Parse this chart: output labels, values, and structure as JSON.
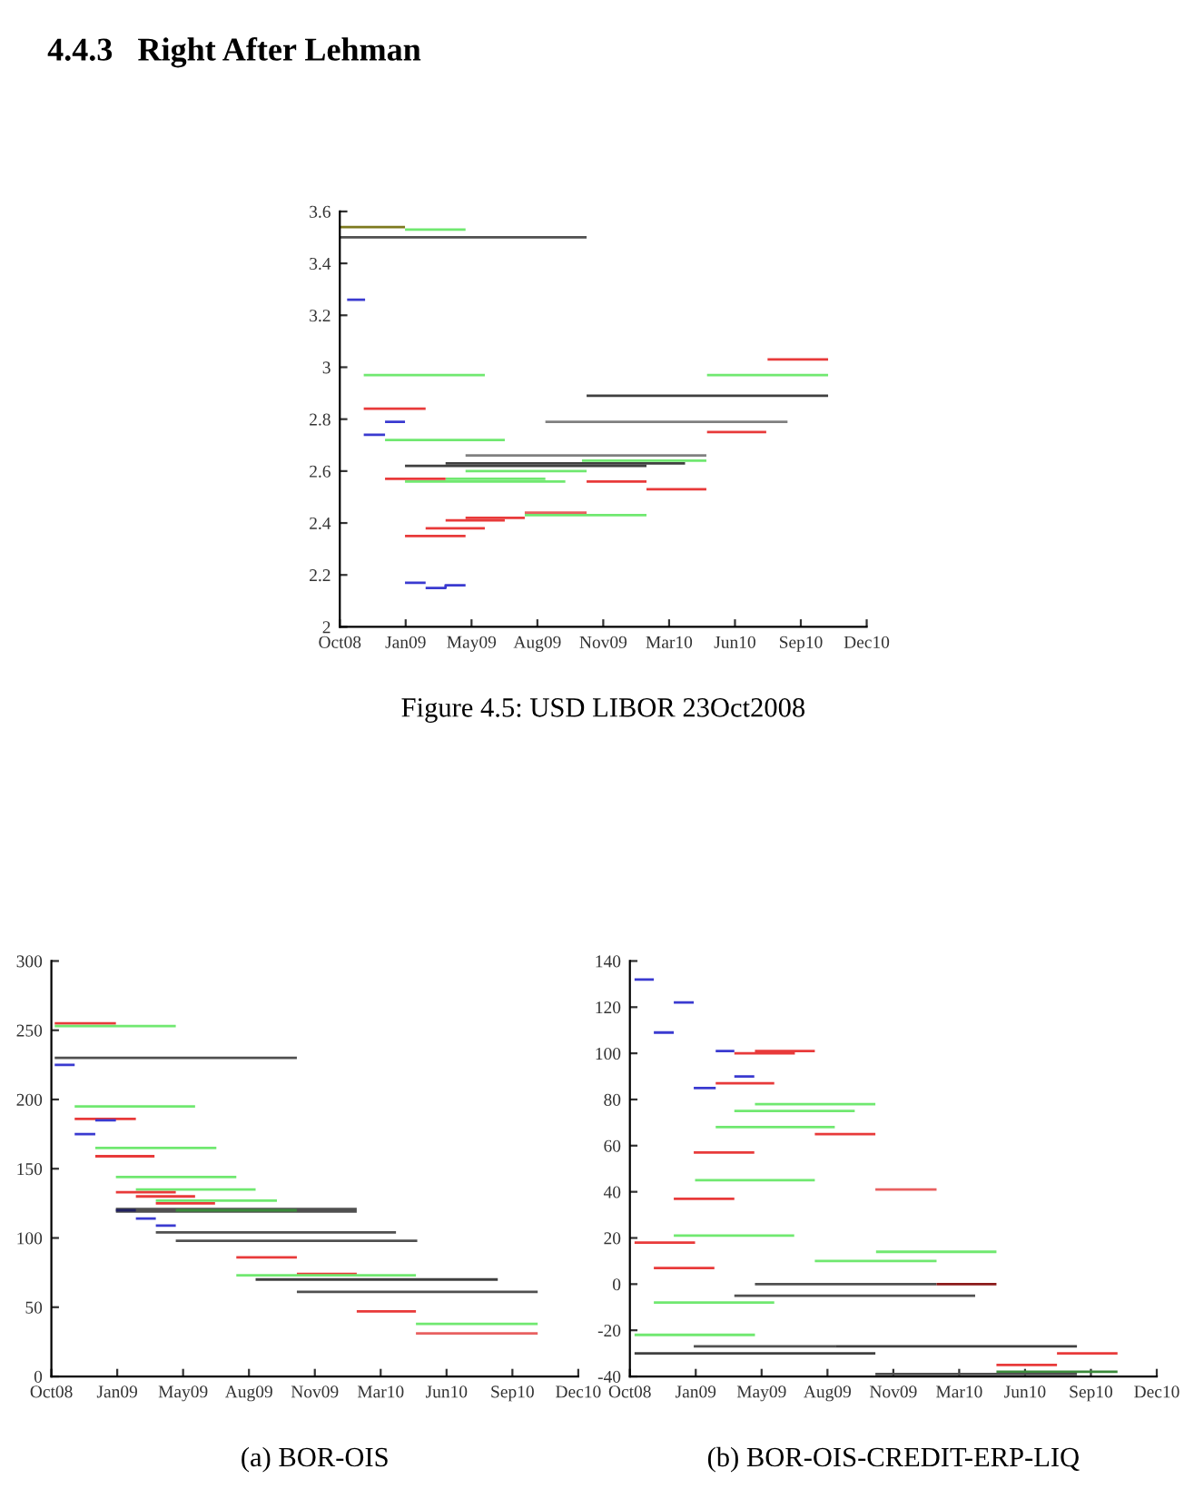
{
  "chart_data": [
    {
      "type": "line",
      "title": "Figure 4.5: USD LIBOR 23Oct2008",
      "annotations": [
        "4.4.3   Right After Lehman"
      ],
      "xlim": [
        "2008-10-23",
        "2010-12-24"
      ],
      "xticks": [
        {
          "value": "2008-10-23",
          "label": "Oct08"
        },
        {
          "value": "2009-01-30",
          "label": "Jan09"
        },
        {
          "value": "2009-05-09",
          "label": "May09"
        },
        {
          "value": "2009-08-16",
          "label": "Aug09"
        },
        {
          "value": "2009-11-23",
          "label": "Nov09"
        },
        {
          "value": "2010-03-02",
          "label": "Mar10"
        },
        {
          "value": "2010-06-09",
          "label": "Jun10"
        },
        {
          "value": "2010-09-16",
          "label": "Sep10"
        },
        {
          "value": "2010-12-24",
          "label": "Dec10"
        }
      ],
      "ylim": [
        2,
        3.6
      ],
      "yticks": [
        2,
        2.2,
        2.4,
        2.6,
        2.8,
        3,
        3.2,
        3.4,
        3.6
      ],
      "grid": false,
      "legend": false,
      "series": [
        {
          "x": [
            "2008-10-23",
            "2009-01-29"
          ],
          "values": [
            3.54,
            3.54
          ],
          "color": "#7d7a1e"
        },
        {
          "x": [
            "2009-01-29",
            "2009-04-30"
          ],
          "values": [
            3.53,
            3.53
          ],
          "color": "#70e870"
        },
        {
          "x": [
            "2008-10-23",
            "2009-10-29"
          ],
          "values": [
            3.5,
            3.5
          ],
          "color": "#505050"
        },
        {
          "x": [
            "2008-11-03",
            "2008-11-30"
          ],
          "values": [
            3.26,
            3.26
          ],
          "color": "#3a3ad0"
        },
        {
          "x": [
            "2008-11-28",
            "2009-05-29"
          ],
          "values": [
            2.97,
            2.97
          ],
          "color": "#70e870"
        },
        {
          "x": [
            "2008-11-28",
            "2009-03-01"
          ],
          "values": [
            2.84,
            2.84
          ],
          "color": "#e83a3a"
        },
        {
          "x": [
            "2008-12-30",
            "2009-01-29"
          ],
          "values": [
            2.79,
            2.79
          ],
          "color": "#3a3ad0"
        },
        {
          "x": [
            "2008-11-28",
            "2008-12-30"
          ],
          "values": [
            2.74,
            2.74
          ],
          "color": "#3a3ad0"
        },
        {
          "x": [
            "2008-12-30",
            "2009-06-28"
          ],
          "values": [
            2.72,
            2.72
          ],
          "color": "#70e870"
        },
        {
          "x": [
            "2009-04-30",
            "2010-04-27"
          ],
          "values": [
            2.66,
            2.66
          ],
          "color": "#808080"
        },
        {
          "x": [
            "2009-10-22",
            "2010-04-27"
          ],
          "values": [
            2.64,
            2.64
          ],
          "color": "#70e870"
        },
        {
          "x": [
            "2009-03-31",
            "2010-03-26"
          ],
          "values": [
            2.63,
            2.63
          ],
          "color": "#404040"
        },
        {
          "x": [
            "2009-01-29",
            "2010-01-27"
          ],
          "values": [
            2.62,
            2.62
          ],
          "color": "#404040"
        },
        {
          "x": [
            "2009-04-30",
            "2009-10-29"
          ],
          "values": [
            2.6,
            2.6
          ],
          "color": "#70e870"
        },
        {
          "x": [
            "2009-03-31",
            "2009-08-28"
          ],
          "values": [
            2.57,
            2.57
          ],
          "color": "#70e870"
        },
        {
          "x": [
            "2008-12-30",
            "2009-03-31"
          ],
          "values": [
            2.57,
            2.57
          ],
          "color": "#e83a3a"
        },
        {
          "x": [
            "2009-01-29",
            "2009-09-27"
          ],
          "values": [
            2.56,
            2.56
          ],
          "color": "#70e870"
        },
        {
          "x": [
            "2009-10-29",
            "2010-01-27"
          ],
          "values": [
            2.56,
            2.56
          ],
          "color": "#e83a3a"
        },
        {
          "x": [
            "2010-01-27",
            "2010-04-27"
          ],
          "values": [
            2.53,
            2.53
          ],
          "color": "#e83a3a"
        },
        {
          "x": [
            "2009-07-28",
            "2009-10-29"
          ],
          "values": [
            2.44,
            2.44
          ],
          "color": "#e86060"
        },
        {
          "x": [
            "2009-07-28",
            "2010-01-27"
          ],
          "values": [
            2.43,
            2.43
          ],
          "color": "#70e870"
        },
        {
          "x": [
            "2009-04-30",
            "2009-07-28"
          ],
          "values": [
            2.42,
            2.42
          ],
          "color": "#e83a3a"
        },
        {
          "x": [
            "2009-03-31",
            "2009-06-28"
          ],
          "values": [
            2.41,
            2.41
          ],
          "color": "#e83a3a"
        },
        {
          "x": [
            "2009-03-01",
            "2009-05-29"
          ],
          "values": [
            2.38,
            2.38
          ],
          "color": "#e83a3a"
        },
        {
          "x": [
            "2009-01-29",
            "2009-04-30"
          ],
          "values": [
            2.35,
            2.35
          ],
          "color": "#e83a3a"
        },
        {
          "x": [
            "2009-01-29",
            "2009-03-01"
          ],
          "values": [
            2.17,
            2.17
          ],
          "color": "#3a3ad0"
        },
        {
          "x": [
            "2009-03-01",
            "2009-03-31",
            "2009-03-31",
            "2009-04-30"
          ],
          "values": [
            2.15,
            2.15,
            2.16,
            2.16
          ],
          "color": "#3a3ad0"
        },
        {
          "x": [
            "2010-07-28",
            "2010-10-27"
          ],
          "values": [
            3.03,
            3.03
          ],
          "color": "#e83a3a"
        },
        {
          "x": [
            "2010-04-28",
            "2010-10-27"
          ],
          "values": [
            2.97,
            2.97
          ],
          "color": "#70e870"
        },
        {
          "x": [
            "2009-10-29",
            "2010-10-27"
          ],
          "values": [
            2.89,
            2.89
          ],
          "color": "#404040"
        },
        {
          "x": [
            "2009-08-28",
            "2010-08-27"
          ],
          "values": [
            2.79,
            2.79
          ],
          "color": "#808080"
        },
        {
          "x": [
            "2010-04-28",
            "2010-07-26"
          ],
          "values": [
            2.75,
            2.75
          ],
          "color": "#e83a3a"
        }
      ]
    },
    {
      "type": "line",
      "title": "(a) BOR-OIS",
      "xlim": [
        "2008-10-23",
        "2010-12-24"
      ],
      "xticks": [
        {
          "value": "2008-10-23",
          "label": "Oct08"
        },
        {
          "value": "2009-01-30",
          "label": "Jan09"
        },
        {
          "value": "2009-05-09",
          "label": "May09"
        },
        {
          "value": "2009-08-16",
          "label": "Aug09"
        },
        {
          "value": "2009-11-23",
          "label": "Nov09"
        },
        {
          "value": "2010-03-02",
          "label": "Mar10"
        },
        {
          "value": "2010-06-09",
          "label": "Jun10"
        },
        {
          "value": "2010-09-16",
          "label": "Sep10"
        },
        {
          "value": "2010-12-24",
          "label": "Dec10"
        }
      ],
      "ylim": [
        0,
        300
      ],
      "yticks": [
        0,
        50,
        100,
        150,
        200,
        250,
        300
      ],
      "grid": false,
      "legend": false,
      "series": [
        {
          "x": [
            "2008-10-28",
            "2009-01-28"
          ],
          "values": [
            255,
            255
          ],
          "color": "#e83a3a"
        },
        {
          "x": [
            "2008-10-28",
            "2009-04-28"
          ],
          "values": [
            253,
            253
          ],
          "color": "#70e870"
        },
        {
          "x": [
            "2008-10-28",
            "2009-10-27"
          ],
          "values": [
            230,
            230
          ],
          "color": "#505050"
        },
        {
          "x": [
            "2008-10-28",
            "2008-11-27"
          ],
          "values": [
            225,
            225
          ],
          "color": "#3a3ad0"
        },
        {
          "x": [
            "2008-11-27",
            "2009-05-27"
          ],
          "values": [
            195,
            195
          ],
          "color": "#70e870"
        },
        {
          "x": [
            "2008-11-27",
            "2009-02-27"
          ],
          "values": [
            186,
            186
          ],
          "color": "#e83a3a"
        },
        {
          "x": [
            "2008-12-28",
            "2009-01-28"
          ],
          "values": [
            185,
            185
          ],
          "color": "#3a3ad0"
        },
        {
          "x": [
            "2008-11-27",
            "2008-12-28"
          ],
          "values": [
            175,
            175
          ],
          "color": "#3a3ad0"
        },
        {
          "x": [
            "2008-12-28",
            "2009-06-28"
          ],
          "values": [
            165,
            165
          ],
          "color": "#70e870"
        },
        {
          "x": [
            "2008-12-28",
            "2009-03-27"
          ],
          "values": [
            159,
            159
          ],
          "color": "#e83a3a"
        },
        {
          "x": [
            "2009-01-28",
            "2009-07-28"
          ],
          "values": [
            144,
            144
          ],
          "color": "#70e870"
        },
        {
          "x": [
            "2009-02-27",
            "2009-08-26"
          ],
          "values": [
            135,
            135
          ],
          "color": "#70e870"
        },
        {
          "x": [
            "2009-01-28",
            "2009-04-28"
          ],
          "values": [
            133,
            133
          ],
          "color": "#e83a3a"
        },
        {
          "x": [
            "2009-02-27",
            "2009-05-27"
          ],
          "values": [
            130,
            130
          ],
          "color": "#e83a3a"
        },
        {
          "x": [
            "2009-03-29",
            "2009-09-27"
          ],
          "values": [
            127,
            127
          ],
          "color": "#70e870"
        },
        {
          "x": [
            "2009-03-29",
            "2009-06-26"
          ],
          "values": [
            125,
            125
          ],
          "color": "#e83a3a"
        },
        {
          "x": [
            "2009-01-28",
            "2010-01-25"
          ],
          "values": [
            120,
            120
          ],
          "color": "#505050"
        },
        {
          "x": [
            "2009-04-28",
            "2009-10-27"
          ],
          "values": [
            120,
            120
          ],
          "color": "#3a8a3a"
        },
        {
          "x": [
            "2009-01-28",
            "2009-02-27"
          ],
          "values": [
            120,
            120
          ],
          "color": "#202060"
        },
        {
          "x": [
            "2009-02-27",
            "2009-03-29"
          ],
          "values": [
            114,
            114
          ],
          "color": "#3a3ad0"
        },
        {
          "x": [
            "2009-03-29",
            "2009-04-28"
          ],
          "values": [
            109,
            109
          ],
          "color": "#3a3ad0"
        },
        {
          "x": [
            "2009-03-29",
            "2010-03-25"
          ],
          "values": [
            104,
            104
          ],
          "color": "#505050"
        },
        {
          "x": [
            "2009-04-28",
            "2010-04-26"
          ],
          "values": [
            98,
            98
          ],
          "color": "#505050"
        },
        {
          "x": [
            "2009-07-28",
            "2009-10-27"
          ],
          "values": [
            86,
            86
          ],
          "color": "#e83a3a"
        },
        {
          "x": [
            "2009-10-27",
            "2010-01-25"
          ],
          "values": [
            74,
            74
          ],
          "color": "#e83a3a"
        },
        {
          "x": [
            "2009-07-28",
            "2010-04-24"
          ],
          "values": [
            73,
            73
          ],
          "color": "#70e870"
        },
        {
          "x": [
            "2009-08-26",
            "2010-08-25"
          ],
          "values": [
            70,
            70
          ],
          "color": "#404040"
        },
        {
          "x": [
            "2009-10-27",
            "2010-10-24"
          ],
          "values": [
            61,
            61
          ],
          "color": "#505050"
        },
        {
          "x": [
            "2010-01-25",
            "2010-04-24"
          ],
          "values": [
            47,
            47
          ],
          "color": "#e83a3a"
        },
        {
          "x": [
            "2010-04-24",
            "2010-10-24"
          ],
          "values": [
            38,
            38
          ],
          "color": "#70e870"
        },
        {
          "x": [
            "2010-04-24",
            "2010-10-24"
          ],
          "values": [
            31,
            31
          ],
          "color": "#e86060"
        }
      ]
    },
    {
      "type": "line",
      "title": "(b) BOR-OIS-CREDIT-ERP-LIQ",
      "xlim": [
        "2008-10-23",
        "2010-12-24"
      ],
      "xticks": [
        {
          "value": "2008-10-23",
          "label": "Oct08"
        },
        {
          "value": "2009-01-30",
          "label": "Jan09"
        },
        {
          "value": "2009-05-09",
          "label": "May09"
        },
        {
          "value": "2009-08-16",
          "label": "Aug09"
        },
        {
          "value": "2009-11-23",
          "label": "Nov09"
        },
        {
          "value": "2010-03-02",
          "label": "Mar10"
        },
        {
          "value": "2010-06-09",
          "label": "Jun10"
        },
        {
          "value": "2010-09-16",
          "label": "Sep10"
        },
        {
          "value": "2010-12-24",
          "label": "Dec10"
        }
      ],
      "ylim": [
        -40,
        140
      ],
      "yticks": [
        -40,
        -20,
        0,
        20,
        40,
        60,
        80,
        100,
        120,
        140
      ],
      "grid": false,
      "legend": false,
      "series": [
        {
          "x": [
            "2008-10-30",
            "2008-11-28"
          ],
          "values": [
            132,
            132
          ],
          "color": "#3a3ad0"
        },
        {
          "x": [
            "2008-12-28",
            "2009-01-27"
          ],
          "values": [
            122,
            122
          ],
          "color": "#3a3ad0"
        },
        {
          "x": [
            "2008-11-28",
            "2008-12-28"
          ],
          "values": [
            109,
            109
          ],
          "color": "#3a3ad0"
        },
        {
          "x": [
            "2009-03-01",
            "2009-03-29"
          ],
          "values": [
            101,
            101
          ],
          "color": "#3a3ad0"
        },
        {
          "x": [
            "2009-03-29",
            "2009-06-28"
          ],
          "values": [
            100,
            100
          ],
          "color": "#e83a3a"
        },
        {
          "x": [
            "2009-04-29",
            "2009-07-28"
          ],
          "values": [
            101,
            101
          ],
          "color": "#e83a3a"
        },
        {
          "x": [
            "2009-03-29",
            "2009-04-28"
          ],
          "values": [
            90,
            90
          ],
          "color": "#3a3ad0"
        },
        {
          "x": [
            "2009-01-27",
            "2009-03-01"
          ],
          "values": [
            85,
            85
          ],
          "color": "#3a3ad0"
        },
        {
          "x": [
            "2009-03-01",
            "2009-05-28"
          ],
          "values": [
            87,
            87
          ],
          "color": "#e83a3a"
        },
        {
          "x": [
            "2009-04-29",
            "2009-10-27"
          ],
          "values": [
            78,
            78
          ],
          "color": "#70e870"
        },
        {
          "x": [
            "2009-03-29",
            "2009-09-26"
          ],
          "values": [
            75,
            75
          ],
          "color": "#70e870"
        },
        {
          "x": [
            "2009-03-01",
            "2009-08-27"
          ],
          "values": [
            68,
            68
          ],
          "color": "#70e870"
        },
        {
          "x": [
            "2009-07-28",
            "2009-10-27"
          ],
          "values": [
            65,
            65
          ],
          "color": "#e83a3a"
        },
        {
          "x": [
            "2009-01-27",
            "2009-04-28"
          ],
          "values": [
            57,
            57
          ],
          "color": "#e83a3a"
        },
        {
          "x": [
            "2009-01-29",
            "2009-07-28"
          ],
          "values": [
            45,
            45
          ],
          "color": "#70e870"
        },
        {
          "x": [
            "2009-10-27",
            "2010-01-27"
          ],
          "values": [
            41,
            41
          ],
          "color": "#e86060"
        },
        {
          "x": [
            "2008-12-28",
            "2009-03-29"
          ],
          "values": [
            37,
            37
          ],
          "color": "#e83a3a"
        },
        {
          "x": [
            "2008-12-28",
            "2009-06-27"
          ],
          "values": [
            21,
            21
          ],
          "color": "#70e870"
        },
        {
          "x": [
            "2008-10-30",
            "2009-01-29"
          ],
          "values": [
            18,
            18
          ],
          "color": "#e83a3a"
        },
        {
          "x": [
            "2009-10-28",
            "2010-04-27"
          ],
          "values": [
            14,
            14
          ],
          "color": "#70e870"
        },
        {
          "x": [
            "2009-07-28",
            "2010-01-27"
          ],
          "values": [
            10,
            10
          ],
          "color": "#70e870"
        },
        {
          "x": [
            "2008-11-28",
            "2009-02-27"
          ],
          "values": [
            7,
            7
          ],
          "color": "#e83a3a"
        },
        {
          "x": [
            "2009-04-29",
            "2010-01-27"
          ],
          "values": [
            0,
            0
          ],
          "color": "#505050"
        },
        {
          "x": [
            "2010-01-27",
            "2010-04-27"
          ],
          "values": [
            0,
            0
          ],
          "color": "#8b1a1a"
        },
        {
          "x": [
            "2009-03-29",
            "2010-03-26"
          ],
          "values": [
            -5,
            -5
          ],
          "color": "#505050"
        },
        {
          "x": [
            "2008-11-28",
            "2009-05-28"
          ],
          "values": [
            -8,
            -8
          ],
          "color": "#70e870"
        },
        {
          "x": [
            "2008-10-30",
            "2009-04-29"
          ],
          "values": [
            -22,
            -22
          ],
          "color": "#70e870"
        },
        {
          "x": [
            "2009-01-27",
            "2009-08-28"
          ],
          "values": [
            -27,
            -27
          ],
          "color": "#505050"
        },
        {
          "x": [
            "2009-08-28",
            "2010-08-26"
          ],
          "values": [
            -27,
            -27
          ],
          "color": "#404040"
        },
        {
          "x": [
            "2008-10-30",
            "2009-10-27"
          ],
          "values": [
            -30,
            -30
          ],
          "color": "#404040"
        },
        {
          "x": [
            "2010-07-27",
            "2010-10-26"
          ],
          "values": [
            -30,
            -30
          ],
          "color": "#e83a3a"
        },
        {
          "x": [
            "2010-04-27",
            "2010-07-27"
          ],
          "values": [
            -35,
            -35
          ],
          "color": "#e83a3a"
        },
        {
          "x": [
            "2010-04-27",
            "2010-10-26"
          ],
          "values": [
            -38,
            -38
          ],
          "color": "#3a8a3a"
        },
        {
          "x": [
            "2009-10-27",
            "2010-08-26"
          ],
          "values": [
            -39,
            -39
          ],
          "color": "#505050"
        }
      ]
    }
  ]
}
